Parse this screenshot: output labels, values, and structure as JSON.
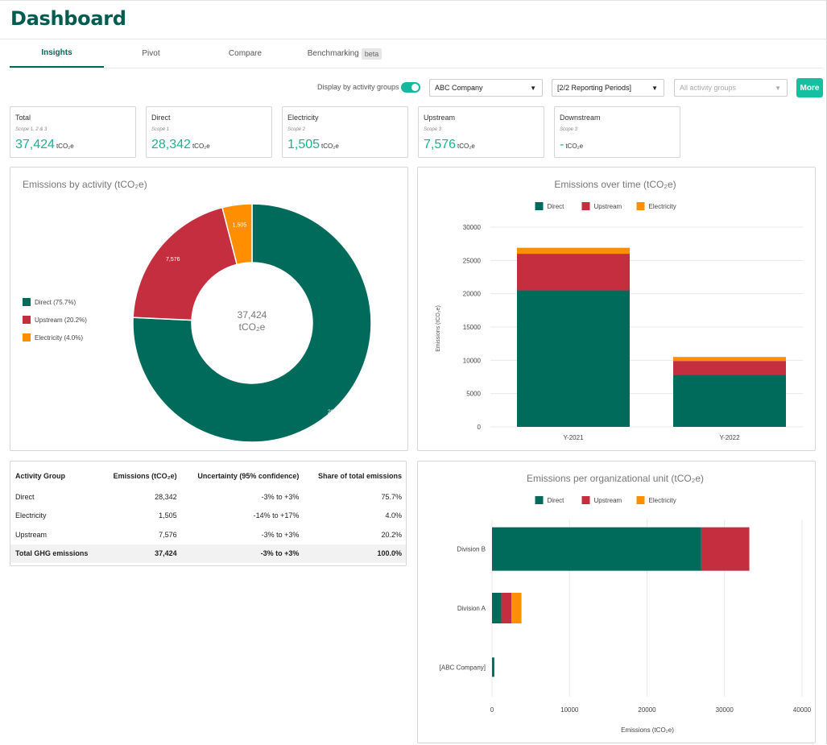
{
  "header": {
    "title": "Dashboard"
  },
  "tabs": [
    {
      "label": "Insights",
      "active": true
    },
    {
      "label": "Pivot",
      "active": false
    },
    {
      "label": "Compare",
      "active": false
    },
    {
      "label": "Benchmarking",
      "active": false,
      "badge": "beta"
    }
  ],
  "filters": {
    "toggle_label": "Display by activity groups",
    "toggle_on": true,
    "company": "ABC Company",
    "periods": "[2/2 Reporting Periods]",
    "activity_groups_placeholder": "All activity groups",
    "more_label": "More"
  },
  "cards": [
    {
      "label": "Total",
      "scope": "Scope 1, 2 & 3",
      "value": "37,424",
      "unit": "tCO₂e"
    },
    {
      "label": "Direct",
      "scope": "Scope 1",
      "value": "28,342",
      "unit": "tCO₂e"
    },
    {
      "label": "Electricity",
      "scope": "Scope 2",
      "value": "1,505",
      "unit": "tCO₂e"
    },
    {
      "label": "Upstream",
      "scope": "Scope 3",
      "value": "7,576",
      "unit": "tCO₂e"
    },
    {
      "label": "Downstream",
      "scope": "Scope 3",
      "value": "-",
      "unit": "tCO₂e"
    }
  ],
  "colors": {
    "direct": "#006b5b",
    "upstream": "#c42e3f",
    "electricity": "#ff8f00",
    "accent": "#14c0a0"
  },
  "chart_data": [
    {
      "type": "pie",
      "title": "Emissions by activity (tCO₂e)",
      "center_value": "37,424",
      "center_unit": "tCO₂e",
      "categories": [
        "Direct",
        "Upstream",
        "Electricity"
      ],
      "values": [
        28342,
        7576,
        1505
      ],
      "labels": [
        "28,342",
        "7,576",
        "1,505"
      ],
      "legend": [
        "Direct (75.7%)",
        "Upstream (20.2%)",
        "Electricity (4.0%)"
      ],
      "legend_position": "left"
    },
    {
      "type": "bar",
      "stacked": true,
      "title": "Emissions over time (tCO₂e)",
      "categories": [
        "Y-2021",
        "Y-2022"
      ],
      "series": [
        {
          "name": "Direct",
          "values": [
            20500,
            7800
          ]
        },
        {
          "name": "Upstream",
          "values": [
            5500,
            2100
          ]
        },
        {
          "name": "Electricity",
          "values": [
            900,
            600
          ]
        }
      ],
      "ylabel": "Emissions (tCO₂e)",
      "ylim": [
        0,
        30000
      ],
      "yticks": [
        "0",
        "5000",
        "10000",
        "15000",
        "20000",
        "25000",
        "30000"
      ],
      "grid": true,
      "legend_position": "top"
    },
    {
      "type": "bar",
      "orientation": "horizontal",
      "stacked": true,
      "title": "Emissions per organizational unit (tCO₂e)",
      "categories": [
        "Division B",
        "Division A",
        "[ABC Company]"
      ],
      "series": [
        {
          "name": "Direct",
          "values": [
            27000,
            1200,
            300
          ]
        },
        {
          "name": "Upstream",
          "values": [
            6200,
            1300,
            0
          ]
        },
        {
          "name": "Electricity",
          "values": [
            0,
            1300,
            0
          ]
        }
      ],
      "xlabel": "Emissions (tCO₂e)",
      "xlim": [
        0,
        40000
      ],
      "xticks": [
        "0",
        "10000",
        "20000",
        "30000",
        "40000"
      ],
      "grid": true,
      "legend_position": "top"
    }
  ],
  "table": {
    "headers": [
      "Activity Group",
      "Emissions (tCO₂e)",
      "Uncertainty (95% confidence)",
      "Share of total emissions"
    ],
    "rows": [
      [
        "Direct",
        "28,342",
        "-3% to +3%",
        "75.7%"
      ],
      [
        "Electricity",
        "1,505",
        "-14% to +17%",
        "4.0%"
      ],
      [
        "Upstream",
        "7,576",
        "-3% to +3%",
        "20.2%"
      ]
    ],
    "total": [
      "Total GHG emissions",
      "37,424",
      "-3% to +3%",
      "100.0%"
    ]
  }
}
